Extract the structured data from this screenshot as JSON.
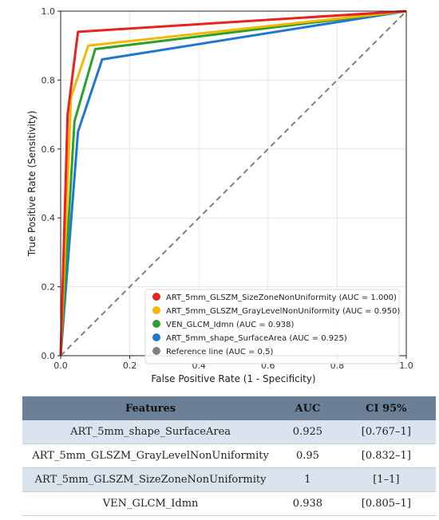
{
  "chart_data": {
    "type": "line",
    "title": "",
    "xlabel": "False Positive Rate (1 - Specificity)",
    "ylabel": "True Positive Rate (Sensitivity)",
    "xlim": [
      0.0,
      1.0
    ],
    "ylim": [
      0.0,
      1.0
    ],
    "x_ticks": [
      "0.0",
      "0.2",
      "0.4",
      "0.6",
      "0.8",
      "1.0"
    ],
    "y_ticks": [
      "0.0",
      "0.2",
      "0.4",
      "0.6",
      "0.8",
      "1.0"
    ],
    "grid": true,
    "legend_position": "lower-right",
    "series": [
      {
        "name": "ART_5mm_GLSZM_SizeZoneNonUniformity (AUC = 1.000)",
        "color": "#e8221f",
        "points": [
          [
            0,
            0
          ],
          [
            0.02,
            0.7
          ],
          [
            0.05,
            0.94
          ],
          [
            1.0,
            1.0
          ]
        ]
      },
      {
        "name": "ART_5mm_GLSZM_GrayLevelNonUniformity (AUC = 0.950)",
        "color": "#f5b800",
        "points": [
          [
            0,
            0
          ],
          [
            0.03,
            0.75
          ],
          [
            0.08,
            0.9
          ],
          [
            1.0,
            1.0
          ]
        ]
      },
      {
        "name": "VEN_GLCM_Idmn (AUC = 0.938)",
        "color": "#2ca02c",
        "points": [
          [
            0,
            0
          ],
          [
            0.04,
            0.68
          ],
          [
            0.1,
            0.89
          ],
          [
            1.0,
            1.0
          ]
        ]
      },
      {
        "name": "ART_5mm_shape_SurfaceArea (AUC = 0.925)",
        "color": "#1f77d4",
        "points": [
          [
            0,
            0
          ],
          [
            0.05,
            0.65
          ],
          [
            0.12,
            0.86
          ],
          [
            1.0,
            1.0
          ]
        ]
      },
      {
        "name": "Reference line (AUC = 0.5)",
        "color": "#7f7f7f",
        "dashed": true,
        "points": [
          [
            0,
            0
          ],
          [
            1.0,
            1.0
          ]
        ]
      }
    ]
  },
  "table": {
    "headers": {
      "features": "Features",
      "auc": "AUC",
      "ci": "CI 95%"
    },
    "rows": [
      {
        "feature": "ART_5mm_shape_SurfaceArea",
        "auc": "0.925",
        "ci": "[0.767–1]"
      },
      {
        "feature": "ART_5mm_GLSZM_GrayLevelNonUniformity",
        "auc": "0.95",
        "ci": "[0.832–1]"
      },
      {
        "feature": "ART_5mm_GLSZM_SizeZoneNonUniformity",
        "auc": "1",
        "ci": "[1–1]"
      },
      {
        "feature": "VEN_GLCM_Idmn",
        "auc": "0.938",
        "ci": "[0.805–1]"
      }
    ]
  }
}
